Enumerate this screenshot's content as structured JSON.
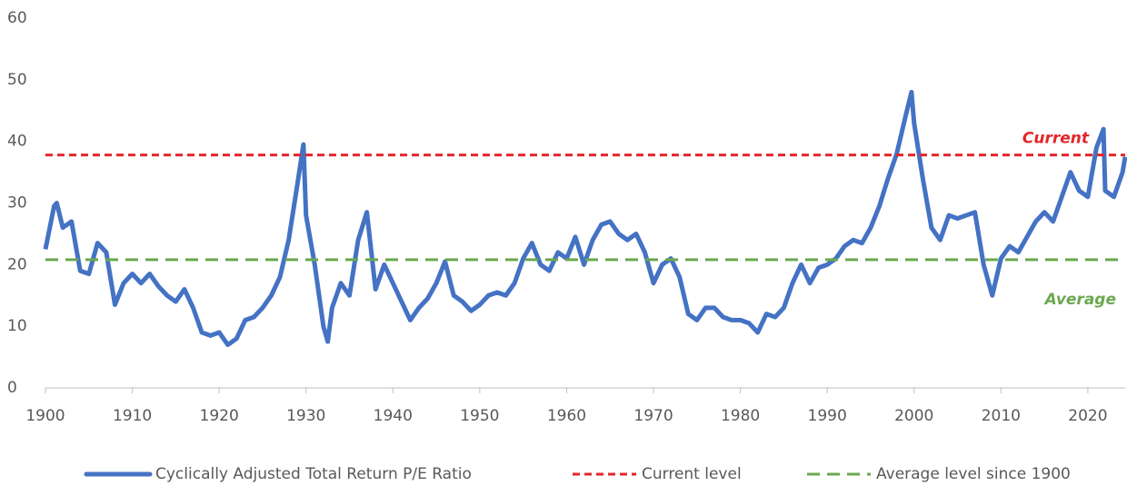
{
  "chart_data": {
    "type": "line",
    "xlim": [
      1900,
      2024.3
    ],
    "xticks": [
      1900,
      1910,
      1920,
      1930,
      1940,
      1950,
      1960,
      1970,
      1980,
      1990,
      2000,
      2010,
      2020
    ],
    "ylim": [
      0,
      60
    ],
    "yticks": [
      0,
      10,
      20,
      30,
      40,
      50,
      60
    ],
    "series": [
      {
        "name": "Cyclically Adjusted Total Return P/E Ratio",
        "color": "#4472c4",
        "x": [
          1900,
          1901,
          1901.3,
          1902,
          1903,
          1904,
          1905,
          1906,
          1907,
          1908,
          1909,
          1910,
          1911,
          1912,
          1913,
          1914,
          1915,
          1916,
          1917,
          1918,
          1919,
          1920,
          1921,
          1922,
          1923,
          1924,
          1925,
          1926,
          1927,
          1928,
          1929,
          1929.7,
          1930,
          1931,
          1932,
          1932.5,
          1933,
          1934,
          1935,
          1936,
          1937,
          1938,
          1939,
          1940,
          1941,
          1942,
          1943,
          1944,
          1945,
          1946,
          1947,
          1948,
          1949,
          1950,
          1951,
          1952,
          1953,
          1954,
          1955,
          1956,
          1957,
          1958,
          1959,
          1960,
          1961,
          1962,
          1963,
          1964,
          1965,
          1966,
          1967,
          1968,
          1969,
          1970,
          1971,
          1972,
          1973,
          1974,
          1975,
          1976,
          1977,
          1978,
          1979,
          1980,
          1981,
          1982,
          1983,
          1984,
          1985,
          1986,
          1987,
          1988,
          1989,
          1990,
          1991,
          1992,
          1993,
          1994,
          1995,
          1996,
          1997,
          1998,
          1999,
          1999.7,
          2000,
          2001,
          2002,
          2003,
          2004,
          2005,
          2006,
          2007,
          2008,
          2009,
          2010,
          2011,
          2012,
          2013,
          2014,
          2015,
          2016,
          2017,
          2018,
          2019,
          2020,
          2021,
          2021.8,
          2022,
          2023,
          2024,
          2024.3
        ],
        "values": [
          22.5,
          29.5,
          30,
          26,
          27,
          19,
          18.5,
          23.5,
          22,
          13.5,
          17,
          18.5,
          17,
          18.5,
          16.5,
          15,
          14,
          16,
          13,
          9,
          8.5,
          9,
          7,
          8,
          11,
          11.5,
          13,
          15,
          18,
          24,
          33,
          39.5,
          28,
          20,
          10,
          7.5,
          13,
          17,
          15,
          24,
          28.5,
          16,
          20,
          17,
          14,
          11,
          13,
          14.5,
          17,
          20.5,
          15,
          14,
          12.5,
          13.5,
          15,
          15.5,
          15,
          17,
          21,
          23.5,
          20,
          19,
          22,
          21,
          24.5,
          20,
          24,
          26.5,
          27,
          25,
          24,
          25,
          22,
          17,
          20,
          21,
          18,
          12,
          11,
          13,
          13,
          11.5,
          11,
          11,
          10.5,
          9,
          12,
          11.5,
          13,
          17,
          20,
          17,
          19.5,
          20,
          21,
          23,
          24,
          23.5,
          26,
          29.5,
          34,
          38,
          44,
          48,
          43,
          34,
          26,
          24,
          28,
          27.5,
          28,
          28.5,
          20,
          15,
          21,
          23,
          22,
          24.5,
          27,
          28.5,
          27,
          31,
          35,
          32,
          31,
          39,
          42,
          32,
          31,
          35,
          37.5
        ]
      }
    ],
    "hlines": [
      {
        "name": "Current level",
        "value": 37.8,
        "color": "#e3262b",
        "annotation": "Current",
        "dash": "8 5"
      },
      {
        "name": "Average level since 1900",
        "value": 20.8,
        "color": "#6aa84f",
        "annotation": "Average",
        "dash": "14 8"
      }
    ]
  }
}
